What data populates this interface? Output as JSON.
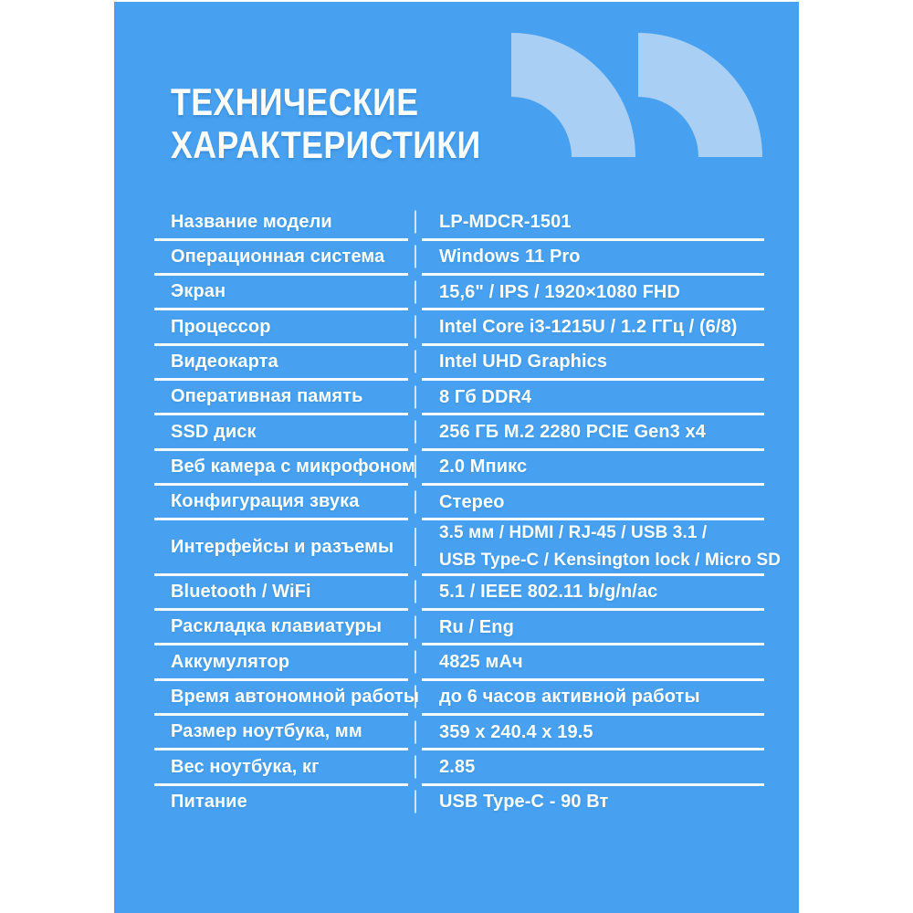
{
  "colors": {
    "page_background": "#ffffff",
    "card_blue": "#47a1f0",
    "quote_light_blue": "#a9d0f4",
    "text_white": "#ffffff",
    "divider_line": "rgba(255,255,255,0.95)",
    "column_divider": "rgba(255,255,255,0.72)"
  },
  "header": {
    "title_line1": "ТЕХНИЧЕСКИЕ",
    "title_line2": "ХАРАКТЕРИСТИКИ",
    "decoration": "double-quote-quarter-arc-icon"
  },
  "table": {
    "rows": [
      {
        "label": "Название модели",
        "value": "LP-MDCR-1501"
      },
      {
        "label": "Операционная система",
        "value": "Windows 11 Pro"
      },
      {
        "label": "Экран",
        "value": "15,6\" / IPS / 1920×1080 FHD"
      },
      {
        "label": "Процессор",
        "value": "Intel Core i3-1215U / 1.2 ГГц / (6/8)"
      },
      {
        "label": "Видеокарта",
        "value": "Intel UHD Graphics"
      },
      {
        "label": "Оперативная память",
        "value": "8 Гб DDR4"
      },
      {
        "label": "SSD диск",
        "value": "256 ГБ M.2 2280 PCIE Gen3 x4"
      },
      {
        "label": "Веб камера с микрофоном",
        "value": "2.0 Мпикс"
      },
      {
        "label": "Конфигурация звука",
        "value": "Стерео"
      },
      {
        "label": "Интерфейсы и разъемы",
        "value": "3.5 мм / HDMI / RJ-45 / USB 3.1 /",
        "value2": "USB Type-C / Kensington lock / Micro SD",
        "tall": true
      },
      {
        "label": "Bluetooth / WiFi",
        "value": "5.1 / IEEE 802.11 b/g/n/ac"
      },
      {
        "label": "Раскладка клавиатуры",
        "value": "Ru / Eng"
      },
      {
        "label": "Аккумулятор",
        "value": "4825 мАч"
      },
      {
        "label": "Время автономной работы",
        "value": "до 6 часов активной работы"
      },
      {
        "label": "Размер ноутбука, мм",
        "value": "359 x 240.4 x 19.5"
      },
      {
        "label": "Вес ноутбука, кг",
        "value": "2.85"
      },
      {
        "label": "Питание",
        "value": "USB Type-C - 90 Вт"
      }
    ]
  }
}
